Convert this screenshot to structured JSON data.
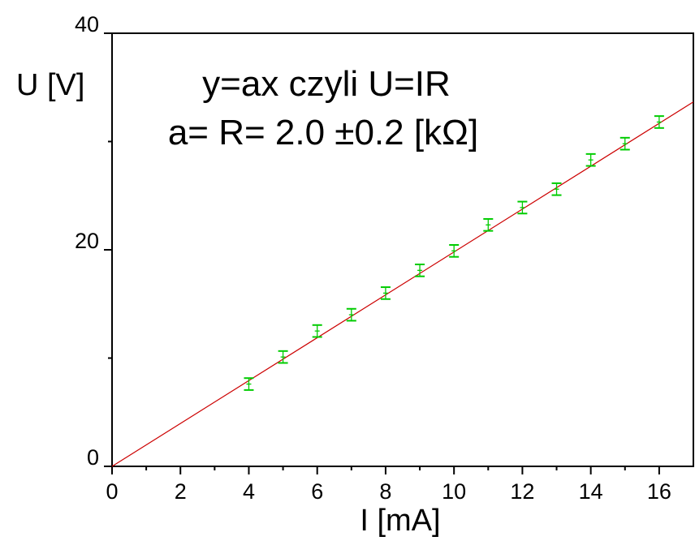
{
  "chart_data": {
    "type": "scatter",
    "xlabel": "I [mA]",
    "ylabel": "U [V]",
    "xlim": [
      0,
      17
    ],
    "ylim": [
      0,
      40
    ],
    "x_ticks": [
      "0",
      "2",
      "4",
      "6",
      "8",
      "10",
      "12",
      "14",
      "16"
    ],
    "y_ticks": [
      "0",
      "20",
      "40"
    ],
    "annotations": [
      "y=ax czyli U=IR",
      "a= R= 2.0 ±0.2 [kΩ]"
    ],
    "grid": false,
    "series": [
      {
        "kind": "points_with_error_bars",
        "x": [
          4,
          5,
          6,
          7,
          8,
          9,
          10,
          11,
          12,
          13,
          14,
          15,
          16
        ],
        "y": [
          7.6,
          10.1,
          12.5,
          14.0,
          16.0,
          18.1,
          19.9,
          22.3,
          23.9,
          25.6,
          28.3,
          29.8,
          31.8
        ],
        "y_err": [
          0.55,
          0.55,
          0.55,
          0.55,
          0.55,
          0.55,
          0.55,
          0.55,
          0.55,
          0.55,
          0.55,
          0.55,
          0.55
        ],
        "color": "#00cc00"
      },
      {
        "kind": "fit_line",
        "slope": 1.98,
        "intercept": 0,
        "x_range": [
          0,
          17
        ],
        "color": "#cc0000"
      }
    ]
  }
}
